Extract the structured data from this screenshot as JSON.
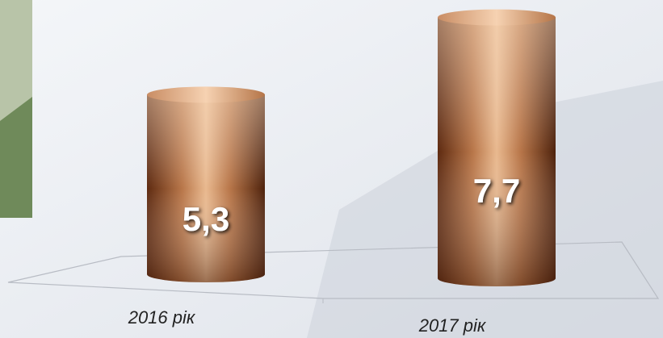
{
  "chart_data": {
    "type": "cylinder",
    "categories": [
      "2016 рік",
      "2017 рік"
    ],
    "values": [
      5.3,
      7.7
    ],
    "value_labels": [
      "5,3",
      "7,7"
    ],
    "color": "#c7875a"
  }
}
